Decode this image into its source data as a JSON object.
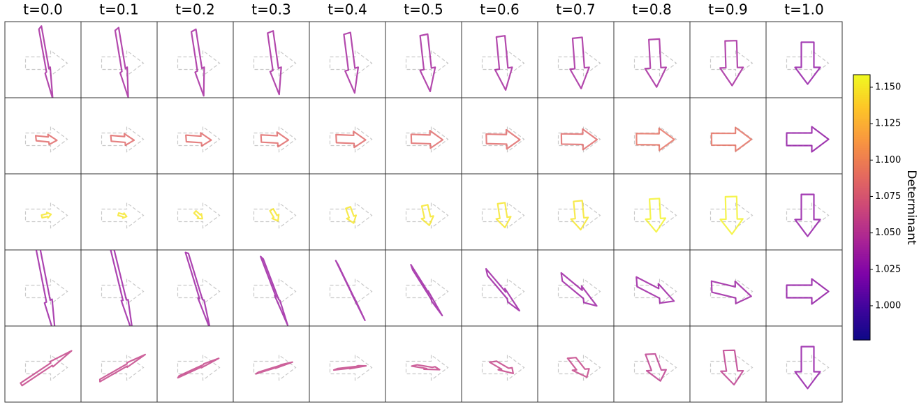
{
  "chart_data": {
    "type": "arrow-grid",
    "column_titles": [
      "t=0.0",
      "t=0.1",
      "t=0.2",
      "t=0.3",
      "t=0.4",
      "t=0.5",
      "t=0.6",
      "t=0.7",
      "t=0.8",
      "t=0.9",
      "t=1.0"
    ],
    "determinants": [
      [
        1.04,
        1.04,
        1.04,
        1.04,
        1.04,
        1.04,
        1.04,
        1.04,
        1.04,
        1.04,
        1.03
      ],
      [
        1.085,
        1.085,
        1.085,
        1.085,
        1.085,
        1.085,
        1.085,
        1.085,
        1.09,
        1.09,
        1.03
      ],
      [
        1.15,
        1.15,
        1.15,
        1.15,
        1.15,
        1.15,
        1.15,
        1.15,
        1.155,
        1.155,
        1.03
      ],
      [
        1.035,
        1.035,
        1.035,
        1.035,
        1.035,
        1.035,
        1.035,
        1.035,
        1.035,
        1.035,
        1.03
      ],
      [
        1.06,
        1.06,
        1.06,
        1.06,
        1.06,
        1.06,
        1.06,
        1.06,
        1.055,
        1.055,
        1.03
      ]
    ],
    "colorbar": {
      "label": "Determinant",
      "clim": [
        0.9765,
        1.1586
      ],
      "ticks": [
        {
          "value": 1.0,
          "label": "1.000"
        },
        1.025,
        {
          "value": 1.05,
          "label": "1.050"
        },
        1.075,
        {
          "value": 1.1,
          "label": "1.100"
        },
        1.125,
        {
          "value": 1.15,
          "label": "1.150"
        }
      ],
      "colormap": "plasma"
    }
  }
}
